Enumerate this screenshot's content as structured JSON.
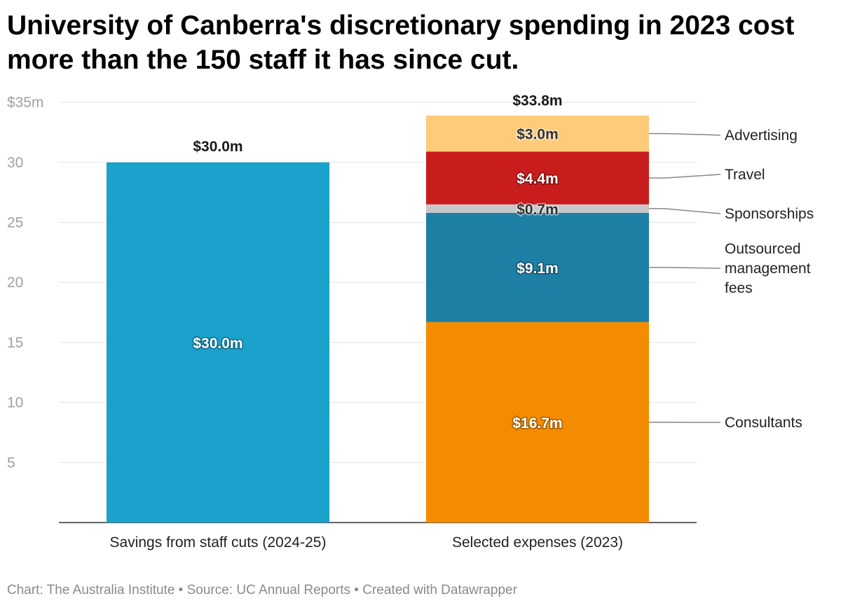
{
  "title": "University of Canberra's discretionary spending in 2023 cost more than the 150 staff it has since cut.",
  "footer": {
    "chart": "Chart: The Australia Institute",
    "source": "• Source: UC Annual Reports",
    "created": "• Created with Datawrapper"
  },
  "chart_data": {
    "type": "bar",
    "stacked": true,
    "title": "University of Canberra's discretionary spending in 2023 cost more than the 150 staff it has since cut.",
    "xlabel": "",
    "ylabel": "",
    "ylim": [
      0,
      35
    ],
    "yticks": [
      {
        "value": 35,
        "label": "$35m"
      },
      {
        "value": 30,
        "label": "30"
      },
      {
        "value": 25,
        "label": "25"
      },
      {
        "value": 20,
        "label": "20"
      },
      {
        "value": 15,
        "label": "15"
      },
      {
        "value": 10,
        "label": "10"
      },
      {
        "value": 5,
        "label": "5"
      }
    ],
    "grid": true,
    "categories": [
      "Savings from staff cuts (2024-25)",
      "Selected expenses (2023)"
    ],
    "totals": [
      {
        "value": 30.0,
        "label": "$30.0m"
      },
      {
        "value": 33.8,
        "label": "$33.8m"
      }
    ],
    "series": [
      {
        "name": "Savings",
        "color": "#1aa1cc",
        "labelColor": "#ffffff",
        "values": [
          30.0,
          0
        ],
        "labels": [
          "$30.0m",
          ""
        ]
      },
      {
        "name": "Consultants",
        "color": "#f58b00",
        "labelColor": "#ffffff",
        "values": [
          0,
          16.7
        ],
        "labels": [
          "",
          "$16.7m"
        ]
      },
      {
        "name": "Outsourced management fees",
        "color": "#1d7fa3",
        "labelColor": "#ffffff",
        "values": [
          0,
          9.1
        ],
        "labels": [
          "",
          "$9.1m"
        ]
      },
      {
        "name": "Sponsorships",
        "color": "#c8c8c8",
        "labelColor": "#333333",
        "values": [
          0,
          0.7
        ],
        "labels": [
          "",
          "$0.7m"
        ]
      },
      {
        "name": "Travel",
        "color": "#c91c1c",
        "labelColor": "#ffffff",
        "values": [
          0,
          4.4
        ],
        "labels": [
          "",
          "$4.4m"
        ]
      },
      {
        "name": "Advertising",
        "color": "#fecb7a",
        "labelColor": "#333333",
        "values": [
          0,
          3.0
        ],
        "labels": [
          "",
          "$3.0m"
        ]
      }
    ],
    "annotations": [
      {
        "series": "Advertising",
        "lines": [
          "Advertising"
        ]
      },
      {
        "series": "Travel",
        "lines": [
          "Travel"
        ]
      },
      {
        "series": "Sponsorships",
        "lines": [
          "Sponsorships"
        ]
      },
      {
        "series": "Outsourced management fees",
        "lines": [
          "Outsourced",
          "management",
          "fees"
        ]
      },
      {
        "series": "Consultants",
        "lines": [
          "Consultants"
        ]
      }
    ]
  }
}
